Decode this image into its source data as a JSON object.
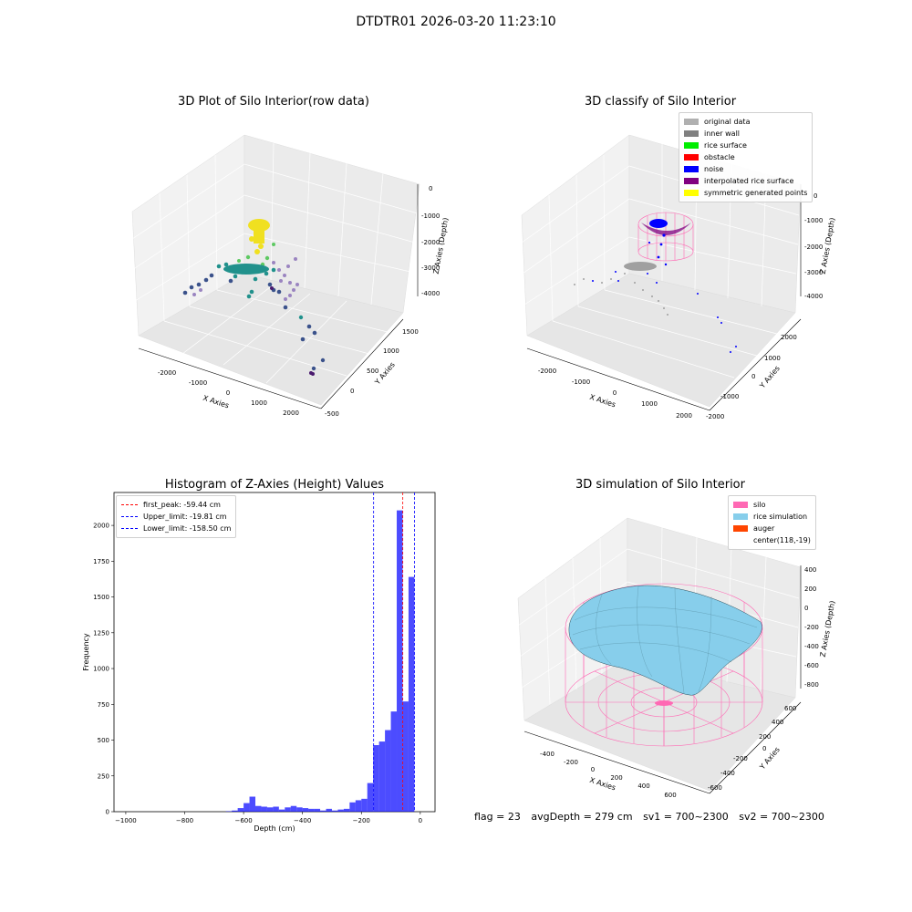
{
  "suptitle": "DTDTR01 2026-03-20 11:23:10",
  "panels": {
    "raw": {
      "title": "3D Plot of Silo Interior(row data)",
      "xlabel": "X Axies",
      "ylabel": "Y Axies",
      "zlabel": "Z Axies (Depth)",
      "xticks": [
        "-2000",
        "-1000",
        "0",
        "1000",
        "2000"
      ],
      "yticks": [
        "-500",
        "0",
        "500",
        "1000",
        "1500"
      ],
      "zticks": [
        "0",
        "-1000",
        "-2000",
        "-3000",
        "-4000"
      ]
    },
    "classify": {
      "title": "3D classify of Silo Interior",
      "xlabel": "X Axies",
      "ylabel": "Y Axies",
      "zlabel": "Z Axies (Depth)",
      "xticks": [
        "-2000",
        "-1000",
        "0",
        "1000",
        "2000"
      ],
      "yticks": [
        "-2000",
        "-1000",
        "0",
        "1000",
        "2000"
      ],
      "zticks": [
        "0",
        "-1000",
        "-2000",
        "-3000",
        "-4000"
      ],
      "legend": [
        {
          "label": "original data",
          "color": "#b0b0b0"
        },
        {
          "label": "inner wall",
          "color": "#808080"
        },
        {
          "label": "rice surface",
          "color": "#00ee00"
        },
        {
          "label": "obstacle",
          "color": "#ff0000"
        },
        {
          "label": "noise",
          "color": "#0000ff"
        },
        {
          "label": "interpolated rice surface",
          "color": "#800080"
        },
        {
          "label": "symmetric generated points",
          "color": "#ffff00"
        }
      ]
    },
    "simulation": {
      "title": "3D simulation of Silo Interior",
      "xlabel": "X Axies",
      "ylabel": "Y Axies",
      "zlabel": "Z Axies (Depth)",
      "xticks": [
        "-400",
        "-200",
        "0",
        "200",
        "400",
        "600"
      ],
      "yticks": [
        "-600",
        "-400",
        "-200",
        "0",
        "200",
        "400",
        "600"
      ],
      "zticks": [
        "400",
        "200",
        "0",
        "-200",
        "-400",
        "-600",
        "-800"
      ],
      "legend": [
        {
          "label": "silo",
          "color": "#ff69b4"
        },
        {
          "label": "rice simulation",
          "color": "#87ceeb"
        },
        {
          "label": "auger",
          "color": "#ff4500"
        },
        {
          "label": "center(118,-19)",
          "color": ""
        }
      ]
    }
  },
  "chart_data": [
    {
      "type": "bar",
      "title": "Histogram of Z-Axies (Height) Values",
      "xlabel": "Depth (cm)",
      "ylabel": "Frequency",
      "xlim": [
        -1040,
        50
      ],
      "ylim": [
        0,
        2230
      ],
      "xticks": [
        -1000,
        -800,
        -600,
        -400,
        -200,
        0
      ],
      "yticks": [
        0,
        250,
        500,
        750,
        1000,
        1250,
        1500,
        1750,
        2000
      ],
      "bar_color": "#0000ff",
      "bin_width": 20,
      "bins_left": [
        -660,
        -640,
        -620,
        -600,
        -580,
        -560,
        -540,
        -520,
        -500,
        -480,
        -460,
        -440,
        -420,
        -400,
        -380,
        -360,
        -340,
        -320,
        -300,
        -280,
        -260,
        -240,
        -220,
        -200,
        -180,
        -160,
        -140,
        -120,
        -100,
        -80,
        -60,
        -40,
        -20
      ],
      "values": [
        3,
        8,
        25,
        60,
        105,
        40,
        35,
        30,
        35,
        15,
        30,
        40,
        30,
        25,
        20,
        20,
        8,
        20,
        8,
        15,
        20,
        65,
        80,
        90,
        200,
        465,
        490,
        570,
        700,
        2105,
        770,
        1640,
        0
      ],
      "vlines": [
        {
          "x": -59.44,
          "color": "#ff0000",
          "label": "first_peak: -59.44 cm"
        },
        {
          "x": -19.81,
          "color": "#0000ff",
          "label": "Upper_limit: -19.81 cm"
        },
        {
          "x": -158.5,
          "color": "#0000ff",
          "label": "Lower_limit: -158.50 cm"
        }
      ],
      "legend_position": "upper-left"
    }
  ],
  "footer": {
    "flag": "flag = 23",
    "avg_depth": "avgDepth = 279 cm",
    "sv1": "sv1 = 700~2300",
    "sv2": "sv2 = 700~2300"
  }
}
